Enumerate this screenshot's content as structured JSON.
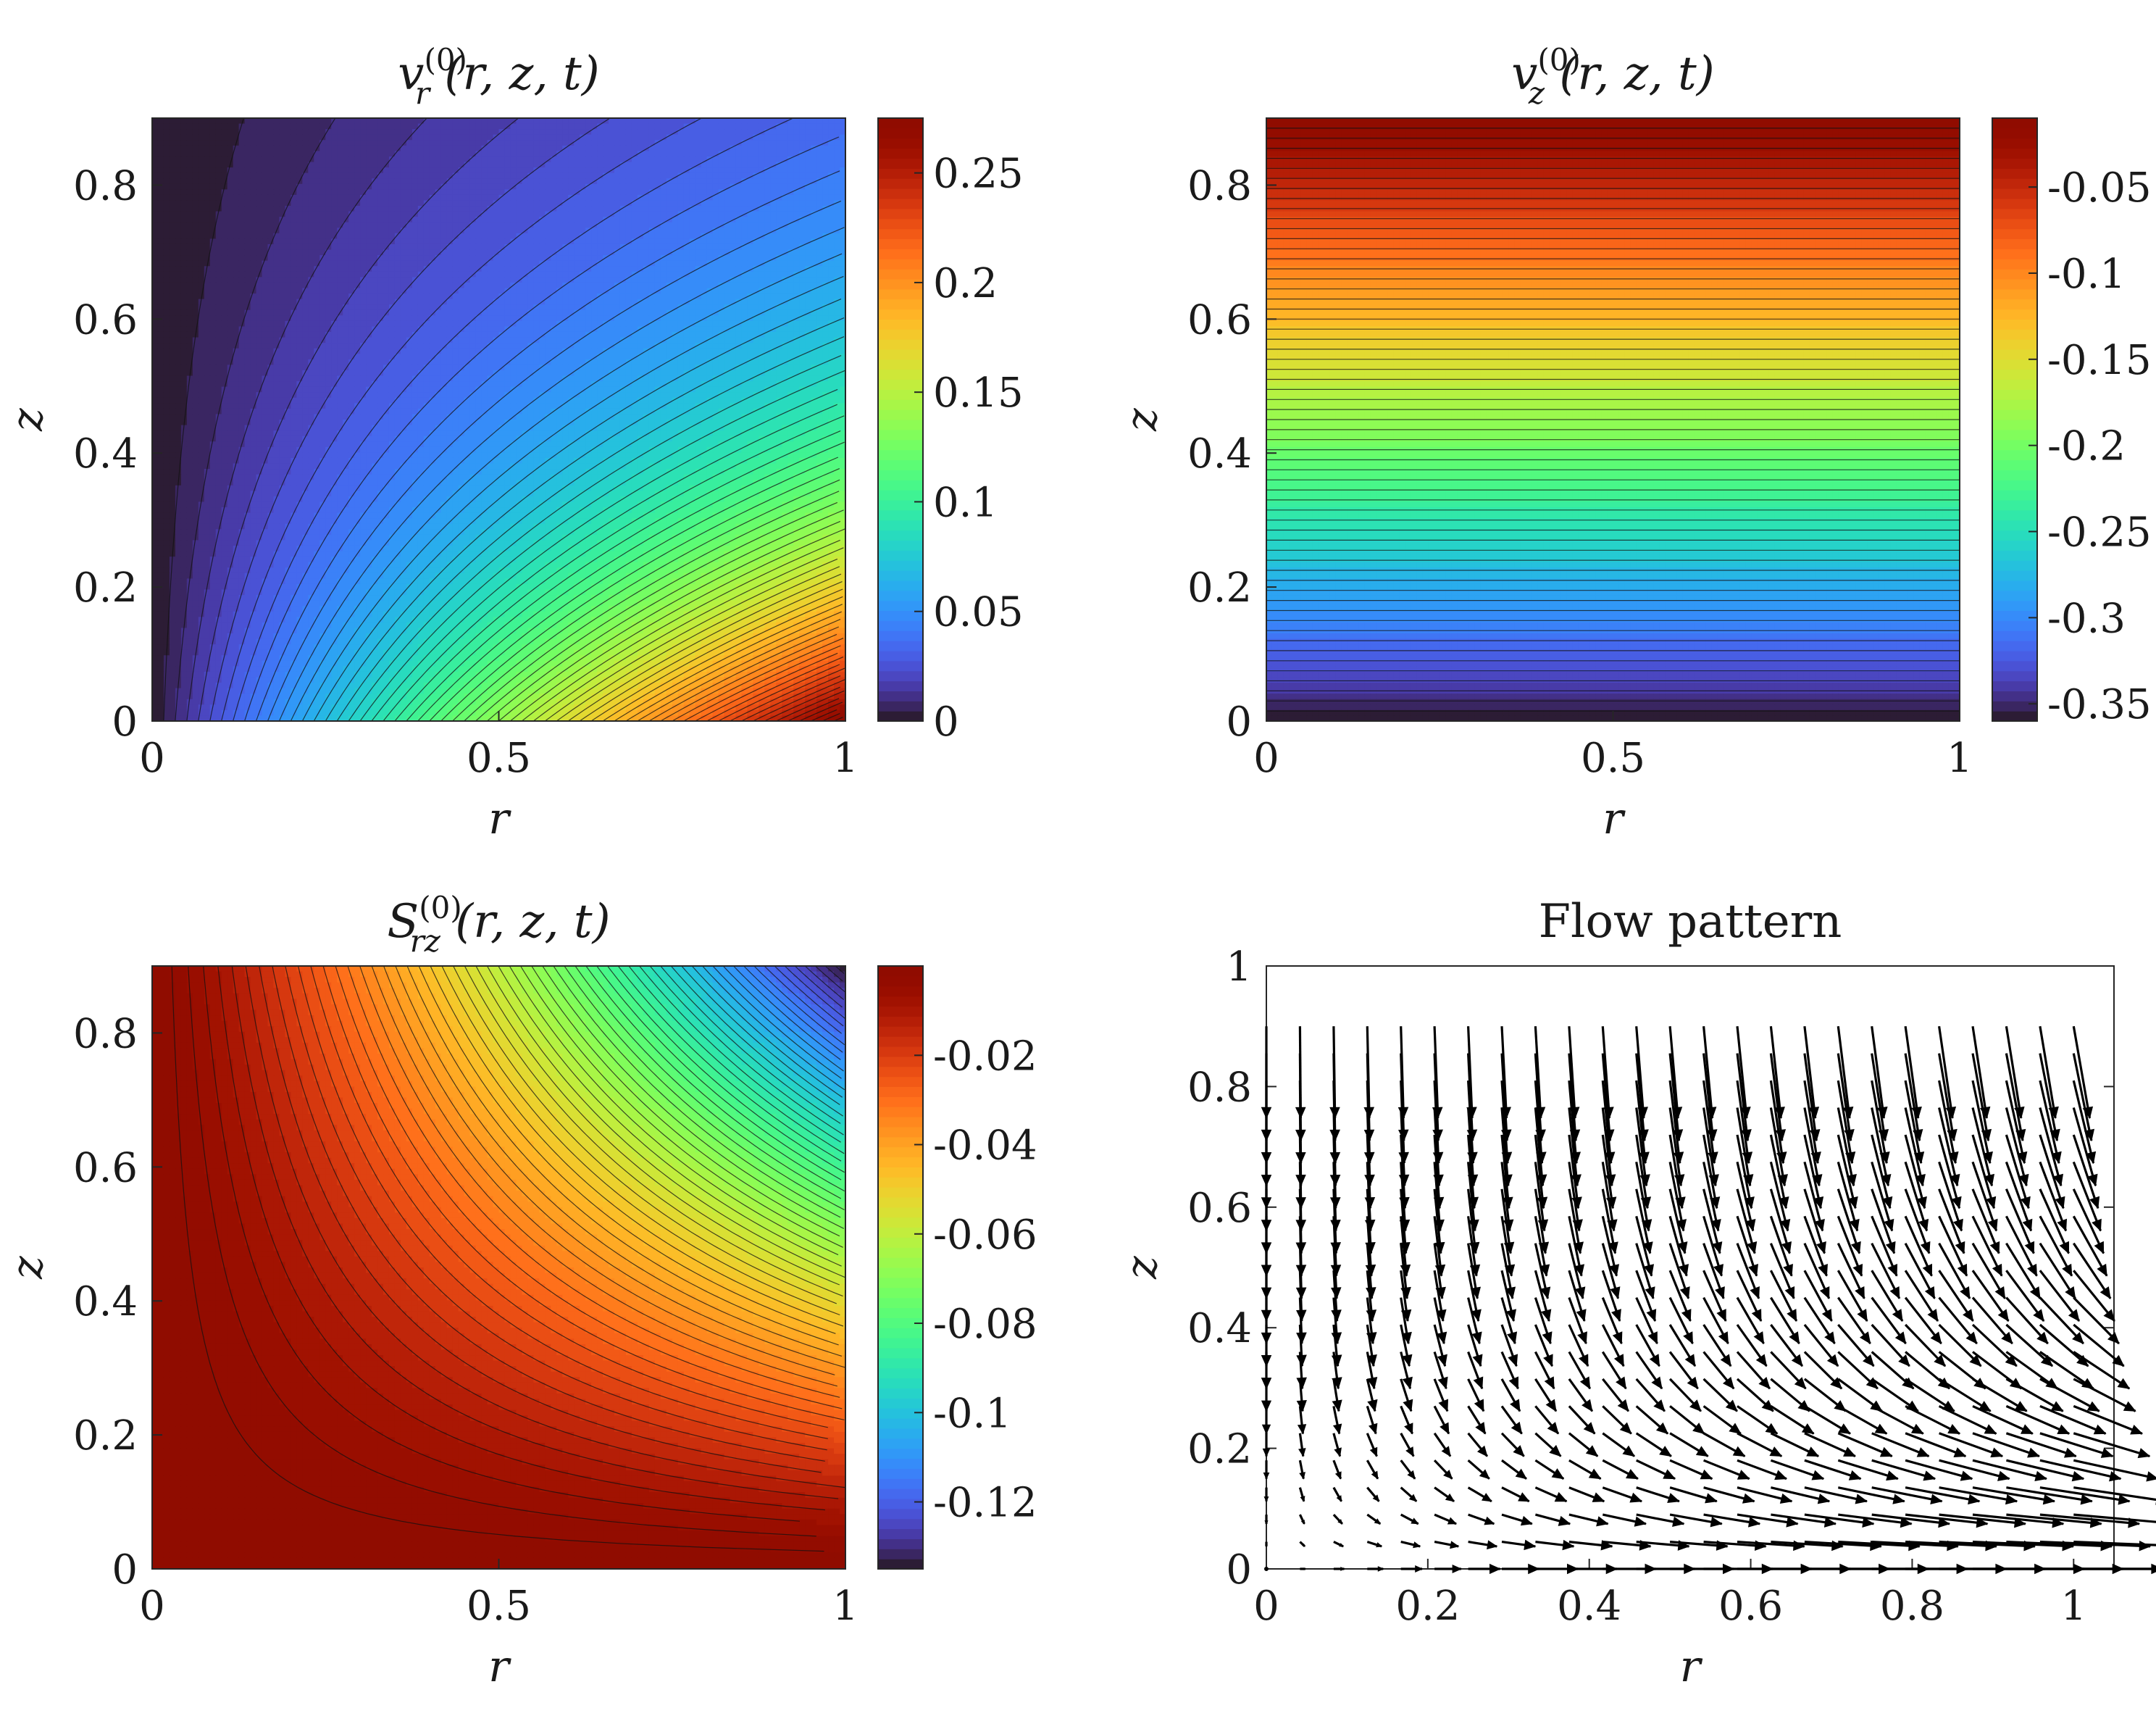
{
  "chart_data": [
    {
      "id": "vr",
      "type": "contour",
      "title": {
        "main": "v",
        "sub": "r",
        "sup": "(0)",
        "args": "(r, z, t)"
      },
      "xlabel": "r",
      "ylabel": "z",
      "xlim": [
        0,
        1
      ],
      "ylim": [
        0,
        0.9
      ],
      "xticks": [
        0,
        0.5,
        1
      ],
      "xtick_labels": [
        "0",
        "0.5",
        "1"
      ],
      "yticks": [
        0,
        0.2,
        0.4,
        0.6,
        0.8
      ],
      "ytick_labels": [
        "0",
        "0.2",
        "0.4",
        "0.6",
        "0.8"
      ],
      "colorbar": {
        "range": [
          0,
          0.275
        ],
        "ticks": [
          0,
          0.05,
          0.1,
          0.15,
          0.2,
          0.25
        ],
        "tick_labels": [
          "0",
          "0.05",
          "0.1",
          "0.15",
          "0.2",
          "0.25"
        ]
      },
      "field": "vr",
      "levels": 60
    },
    {
      "id": "vz",
      "type": "contour",
      "title": {
        "main": "v",
        "sub": "z",
        "sup": "(0)",
        "args": "(r, z, t)"
      },
      "xlabel": "r",
      "ylabel": "z",
      "xlim": [
        0,
        1
      ],
      "ylim": [
        0,
        0.9
      ],
      "xticks": [
        0,
        0.5,
        1
      ],
      "xtick_labels": [
        "0",
        "0.5",
        "1"
      ],
      "yticks": [
        0,
        0.2,
        0.4,
        0.6,
        0.8
      ],
      "ytick_labels": [
        "0",
        "0.2",
        "0.4",
        "0.6",
        "0.8"
      ],
      "colorbar": {
        "range": [
          -0.36,
          -0.01
        ],
        "ticks": [
          -0.35,
          -0.3,
          -0.25,
          -0.2,
          -0.15,
          -0.1,
          -0.05
        ],
        "tick_labels": [
          "-0.35",
          "-0.3",
          "-0.25",
          "-0.2",
          "-0.15",
          "-0.1",
          "-0.05"
        ]
      },
      "field": "vz",
      "levels": 60
    },
    {
      "id": "srz",
      "type": "contour",
      "title": {
        "main": "S",
        "sub": "rz",
        "sup": "(0)",
        "args": "(r, z, t)"
      },
      "xlabel": "r",
      "ylabel": "z",
      "xlim": [
        0,
        1
      ],
      "ylim": [
        0,
        0.9
      ],
      "xticks": [
        0,
        0.5,
        1
      ],
      "xtick_labels": [
        "0",
        "0.5",
        "1"
      ],
      "yticks": [
        0,
        0.2,
        0.4,
        0.6,
        0.8
      ],
      "ytick_labels": [
        "0",
        "0.2",
        "0.4",
        "0.6",
        "0.8"
      ],
      "colorbar": {
        "range": [
          -0.135,
          0
        ],
        "ticks": [
          -0.12,
          -0.1,
          -0.08,
          -0.06,
          -0.04,
          -0.02
        ],
        "tick_labels": [
          "-0.12",
          "-0.1",
          "-0.08",
          "-0.06",
          "-0.04",
          "-0.02"
        ]
      },
      "field": "srz",
      "levels": 60
    },
    {
      "id": "flow",
      "type": "quiver",
      "title": "Flow pattern",
      "xlabel": "r",
      "ylabel": "z",
      "xlim": [
        0,
        1.05
      ],
      "ylim": [
        0,
        1
      ],
      "xticks": [
        0,
        0.2,
        0.4,
        0.6,
        0.8,
        1
      ],
      "xtick_labels": [
        "0",
        "0.2",
        "0.4",
        "0.6",
        "0.8",
        "1"
      ],
      "yticks": [
        0,
        0.2,
        0.4,
        0.6,
        0.8,
        1
      ],
      "ytick_labels": [
        "0",
        "0.2",
        "0.4",
        "0.6",
        "0.8",
        "1"
      ],
      "grid": {
        "r_min": 0,
        "r_max": 1,
        "r_count": 25,
        "z_min": 0,
        "z_max": 0.9,
        "z_count": 21
      },
      "field": "velocity"
    }
  ]
}
